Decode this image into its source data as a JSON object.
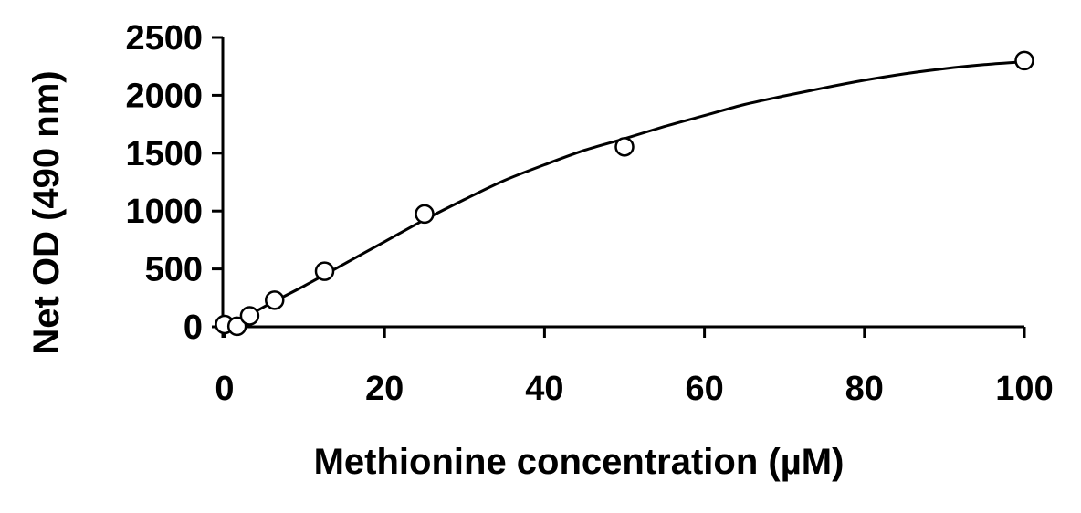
{
  "chart_data": {
    "type": "scatter",
    "title": "",
    "xlabel": "Methionine concentration (µM)",
    "ylabel": "Net OD (490 nm)",
    "xlim": [
      0,
      100
    ],
    "ylim": [
      0,
      2500
    ],
    "x_ticks": [
      0,
      20,
      40,
      60,
      80,
      100
    ],
    "y_ticks": [
      0,
      500,
      1000,
      1500,
      2000,
      2500
    ],
    "x_tick_labels": [
      "0",
      "20",
      "40",
      "60",
      "80",
      "100"
    ],
    "y_tick_labels": [
      "0",
      "500",
      "1000",
      "1500",
      "2000",
      "2500"
    ],
    "grid": false,
    "legend": "none",
    "series": [
      {
        "kind": "points",
        "marker": "open-circle",
        "x": [
          0,
          1.56,
          3.13,
          6.25,
          12.5,
          25,
          50,
          100
        ],
        "y": [
          20,
          5,
          95,
          230,
          480,
          975,
          1555,
          2300
        ]
      },
      {
        "kind": "fit-curve",
        "x": [
          0,
          5,
          10,
          15,
          20,
          25,
          30,
          35,
          40,
          45,
          50,
          55,
          60,
          65,
          70,
          75,
          80,
          85,
          90,
          95,
          100
        ],
        "y": [
          -20,
          175,
          355,
          545,
          735,
          925,
          1100,
          1265,
          1400,
          1525,
          1625,
          1730,
          1825,
          1920,
          1995,
          2065,
          2130,
          2185,
          2230,
          2265,
          2290
        ]
      }
    ],
    "colors": {
      "line": "#000000",
      "marker_fill": "#ffffff",
      "marker_stroke": "#000000"
    }
  }
}
